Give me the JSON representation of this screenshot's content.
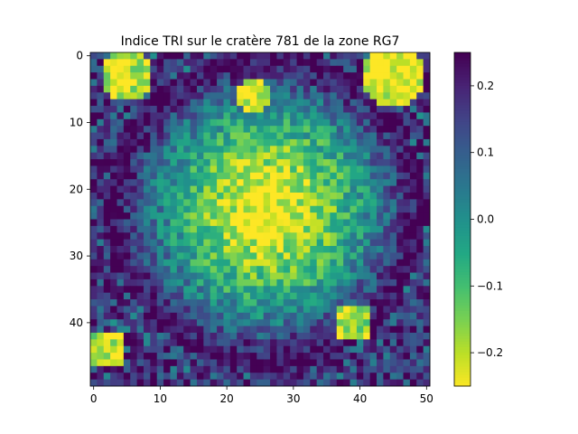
{
  "chart_data": {
    "type": "heatmap",
    "title": "Indice TRI sur le cratère 781 de la zone RG7",
    "xlabel": "",
    "ylabel": "",
    "grid": false,
    "n_cols": 51,
    "n_rows": 50,
    "x_ticks": [
      "0",
      "10",
      "20",
      "30",
      "40",
      "50"
    ],
    "y_ticks": [
      "0",
      "10",
      "20",
      "30",
      "40"
    ],
    "colormap": "viridis_r",
    "colorbar": {
      "min": -0.25,
      "max": 0.25,
      "ticks": [
        "0.2",
        "0.1",
        "0.0",
        "−0.1",
        "−0.2"
      ]
    },
    "value_model": {
      "rim_value": 0.25,
      "center_value": -0.25,
      "center": [
        26,
        23
      ],
      "radius": 23,
      "noise": 0.09,
      "corner_patches": [
        {
          "at": [
            3,
            45
          ],
          "value": -0.25,
          "radius": 5
        },
        {
          "at": [
            3,
            5
          ],
          "value": -0.22,
          "radius": 4
        },
        {
          "at": [
            6,
            24
          ],
          "value": -0.24,
          "radius": 2.5
        },
        {
          "at": [
            40,
            39
          ],
          "value": -0.2,
          "radius": 3
        },
        {
          "at": [
            44,
            2
          ],
          "value": -0.2,
          "radius": 3
        }
      ]
    }
  }
}
